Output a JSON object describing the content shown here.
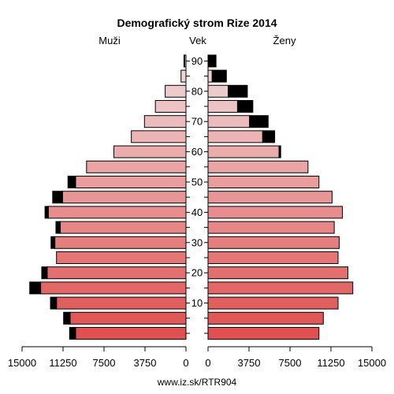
{
  "chart_data": {
    "type": "bar",
    "title": "Demografický strom Rize 2014",
    "left_label": "Muži",
    "center_label": "Vek",
    "right_label": "Ženy",
    "footer": "www.iz.sk/RTR904",
    "x_ticks_left": [
      "15000",
      "11250",
      "7500",
      "3750",
      "0"
    ],
    "x_ticks_right": [
      "0",
      "3750",
      "7500",
      "11250",
      "15000"
    ],
    "x_max": 15000,
    "age_ticks": [
      "10",
      "20",
      "30",
      "40",
      "50",
      "60",
      "70",
      "80",
      "90"
    ],
    "age_groups": [
      "0-4",
      "5-9",
      "10-14",
      "15-19",
      "20-24",
      "25-29",
      "30-34",
      "35-39",
      "40-44",
      "45-49",
      "50-54",
      "55-59",
      "60-64",
      "65-69",
      "70-74",
      "75-79",
      "80-84",
      "85-89",
      "90-94"
    ],
    "series": [
      {
        "name": "Muži",
        "values": [
          10100,
          10600,
          11850,
          13300,
          12700,
          11850,
          12000,
          11500,
          12600,
          11300,
          10100,
          9100,
          6600,
          5000,
          3800,
          2800,
          1900,
          450,
          130
        ]
      },
      {
        "name": "Muži (prebytok)",
        "values": [
          550,
          600,
          550,
          1000,
          500,
          0,
          350,
          400,
          300,
          900,
          700,
          0,
          0,
          0,
          0,
          0,
          0,
          0,
          50
        ]
      },
      {
        "name": "Ženy",
        "values": [
          10150,
          10550,
          11900,
          13250,
          12800,
          11900,
          12000,
          11550,
          12300,
          11350,
          10150,
          9150,
          6500,
          5000,
          3800,
          2700,
          1850,
          380,
          80
        ]
      },
      {
        "name": "Ženy (prebytok)",
        "values": [
          0,
          0,
          0,
          0,
          0,
          0,
          0,
          0,
          0,
          0,
          0,
          0,
          150,
          1100,
          1700,
          1400,
          1750,
          1300,
          650
        ]
      }
    ],
    "colors": {
      "bottom": "#e05050",
      "top": "#f0dada",
      "excess": "#000000",
      "outline": "#000000"
    }
  }
}
